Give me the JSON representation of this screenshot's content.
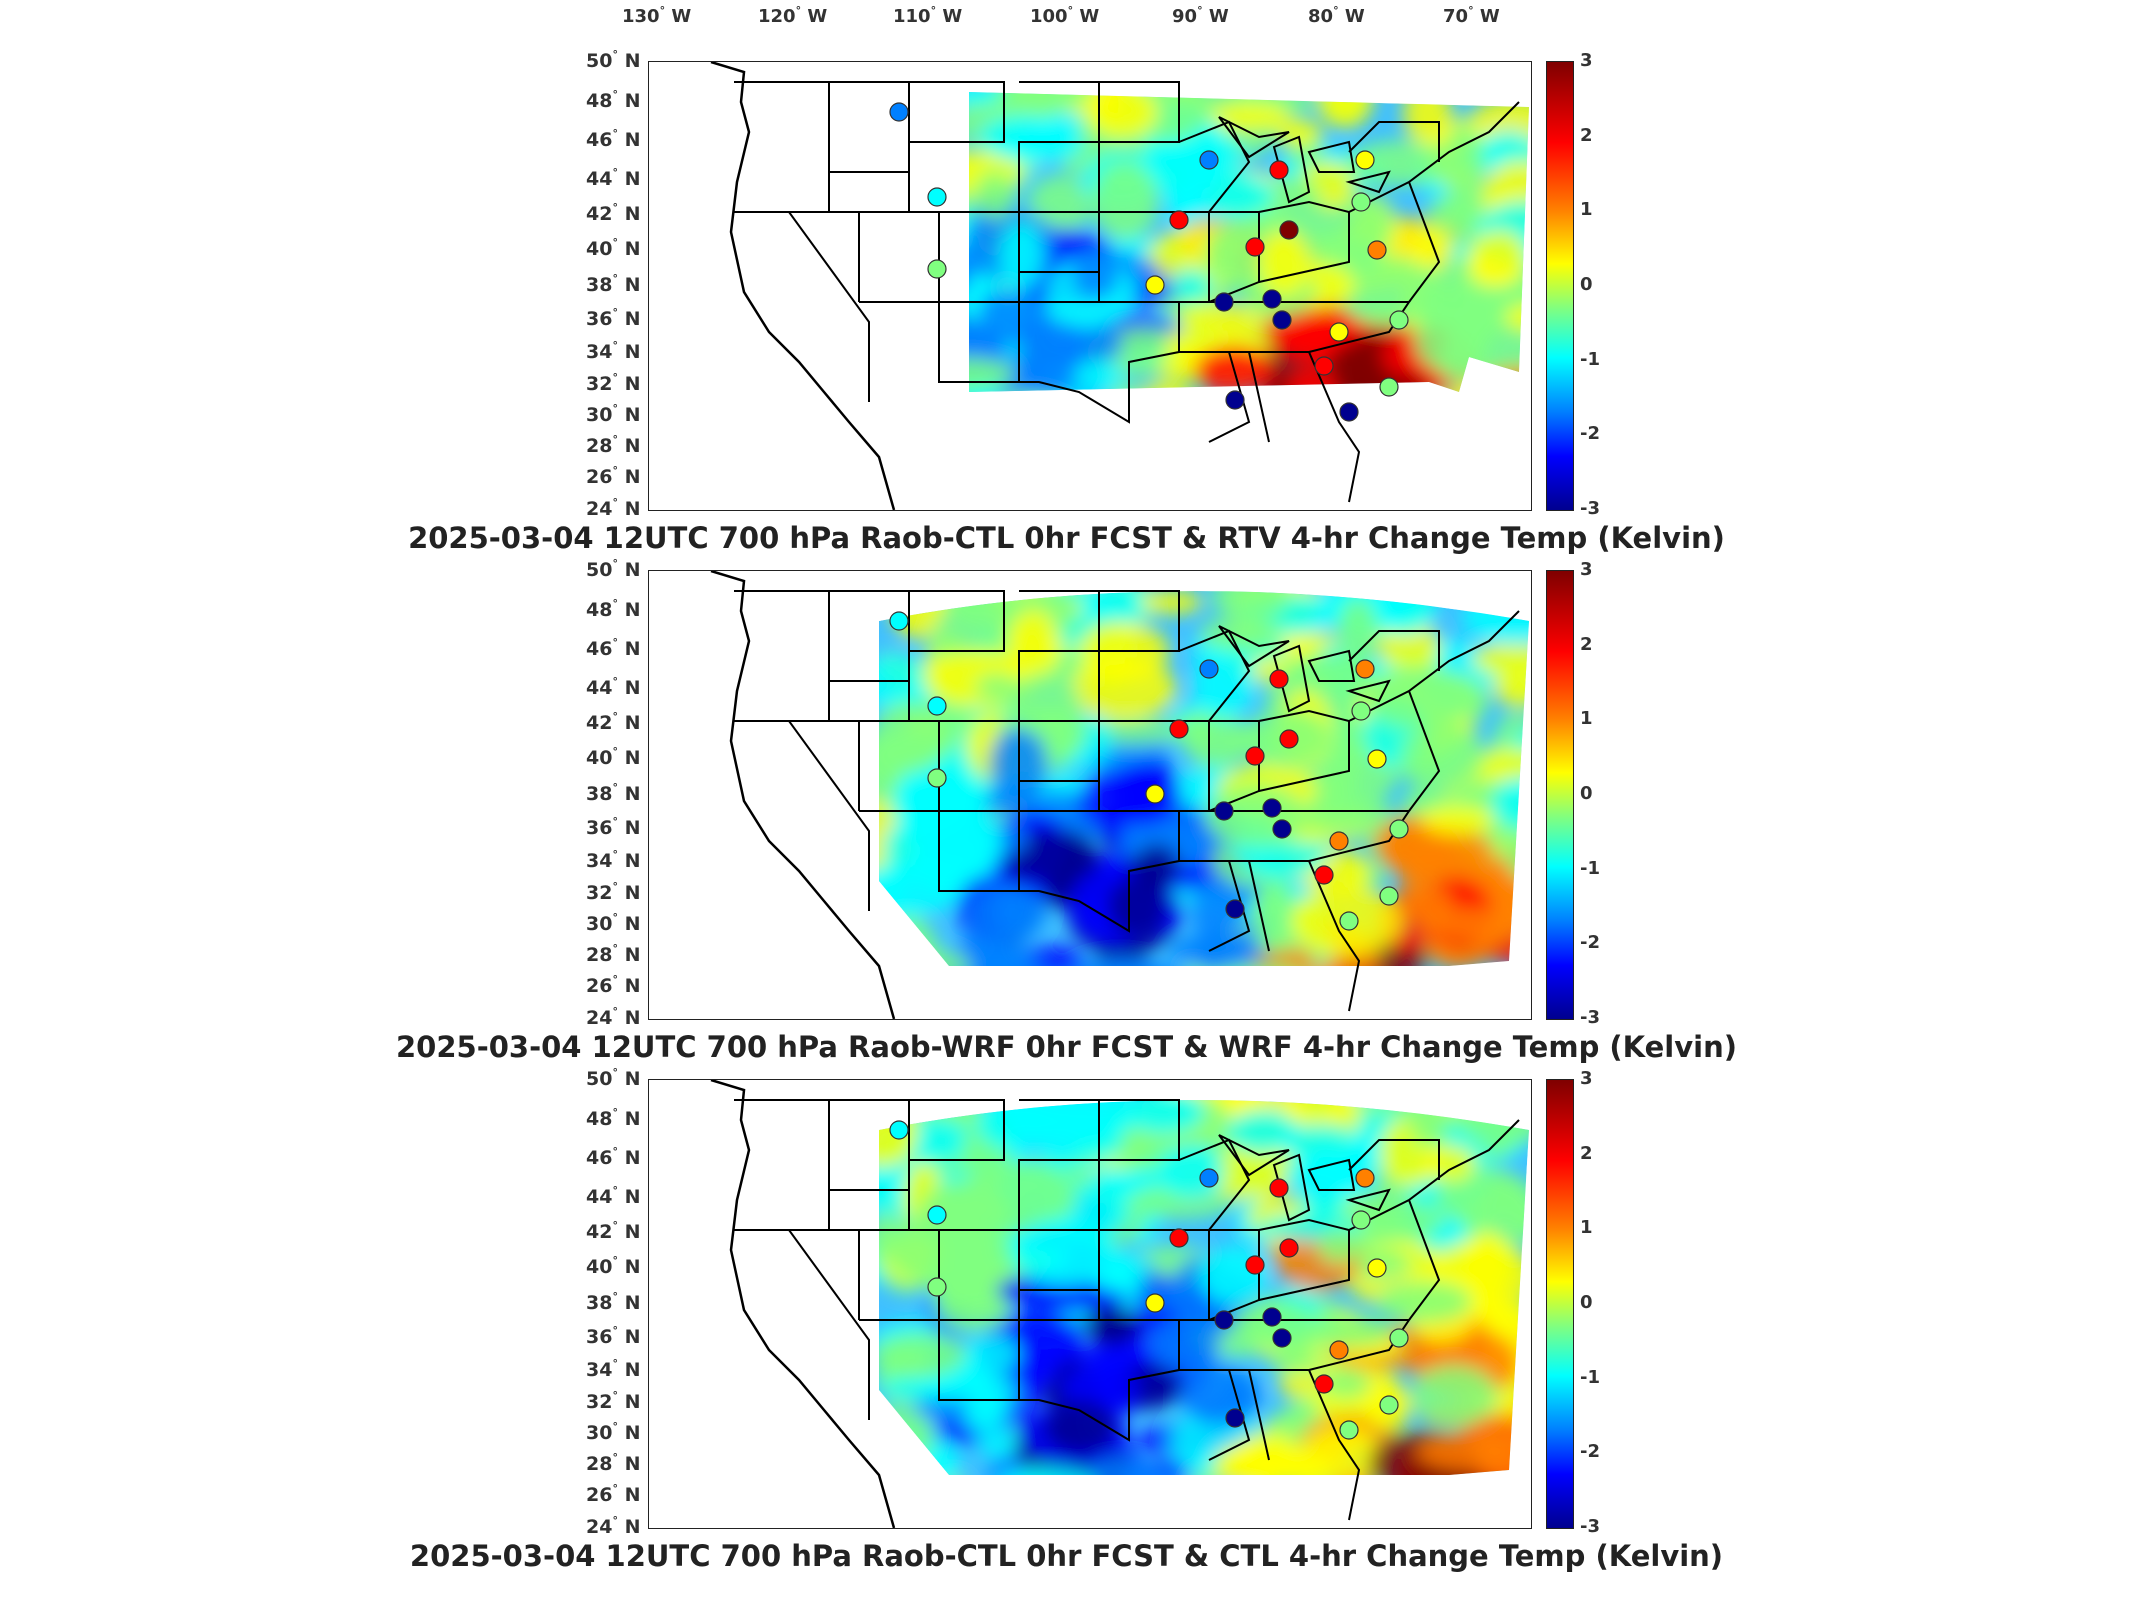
{
  "lon_labels": [
    {
      "deg": "130",
      "dir": "W"
    },
    {
      "deg": "120",
      "dir": "W"
    },
    {
      "deg": "110",
      "dir": "W"
    },
    {
      "deg": "100",
      "dir": "W"
    },
    {
      "deg": "90",
      "dir": "W"
    },
    {
      "deg": "80",
      "dir": "W"
    },
    {
      "deg": "70",
      "dir": "W"
    }
  ],
  "lat_labels": [
    {
      "deg": "50",
      "dir": "N"
    },
    {
      "deg": "48",
      "dir": "N"
    },
    {
      "deg": "46",
      "dir": "N"
    },
    {
      "deg": "44",
      "dir": "N"
    },
    {
      "deg": "42",
      "dir": "N"
    },
    {
      "deg": "40",
      "dir": "N"
    },
    {
      "deg": "38",
      "dir": "N"
    },
    {
      "deg": "36",
      "dir": "N"
    },
    {
      "deg": "34",
      "dir": "N"
    },
    {
      "deg": "32",
      "dir": "N"
    },
    {
      "deg": "30",
      "dir": "N"
    },
    {
      "deg": "28",
      "dir": "N"
    },
    {
      "deg": "26",
      "dir": "N"
    },
    {
      "deg": "24",
      "dir": "N"
    }
  ],
  "colorbar": {
    "ticks": [
      "3",
      "2",
      "1",
      "0",
      "-1",
      "-2",
      "-3"
    ],
    "colors": [
      "#7f0000",
      "#ff0000",
      "#ff8000",
      "#ffff00",
      "#80ff80",
      "#00ffff",
      "#0080ff",
      "#0000ff",
      "#00008f"
    ]
  },
  "panels": [
    {
      "title": "2025-03-04 12UTC 700 hPa Raob-CTL 0hr FCST & RTV 4-hr Change Temp (Kelvin)"
    },
    {
      "title": "2025-03-04 12UTC 700 hPa Raob-WRF 0hr FCST & WRF 4-hr Change Temp (Kelvin)"
    },
    {
      "title": "2025-03-04 12UTC 700 hPa Raob-CTL 0hr FCST & CTL 4-hr Change Temp (Kelvin)"
    }
  ]
}
